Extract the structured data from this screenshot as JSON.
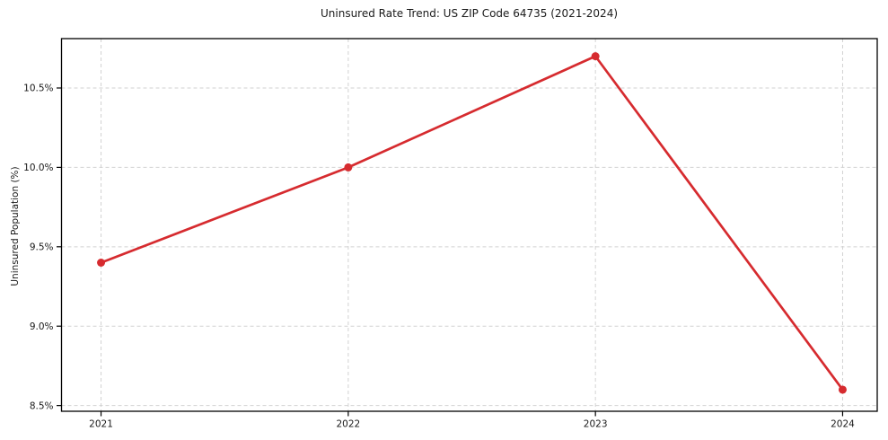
{
  "chart_data": {
    "type": "line",
    "title": "Uninsured Rate Trend: US ZIP Code 64735 (2021-2024)",
    "xlabel": "",
    "ylabel": "Uninsured Population (%)",
    "x": [
      2021,
      2022,
      2023,
      2024
    ],
    "values": [
      9.4,
      10.0,
      10.7,
      8.6
    ],
    "x_tick_labels": [
      "2021",
      "2022",
      "2023",
      "2024"
    ],
    "y_ticks": [
      8.5,
      9.0,
      9.5,
      10.0,
      10.5
    ],
    "y_tick_labels": [
      "8.5%",
      "9.0%",
      "9.5%",
      "10.0%",
      "10.5%"
    ],
    "xlim": [
      2020.84,
      2024.14
    ],
    "ylim": [
      8.464,
      10.811
    ],
    "grid": true,
    "grid_style": "dashed",
    "legend": false,
    "marker": "circle",
    "line_color": "#d62b2f"
  },
  "colors": {
    "line": "#d62b2f",
    "grid": "#d2d2d2",
    "spine": "#000000",
    "text": "#1a1a1a",
    "background": "#ffffff"
  }
}
